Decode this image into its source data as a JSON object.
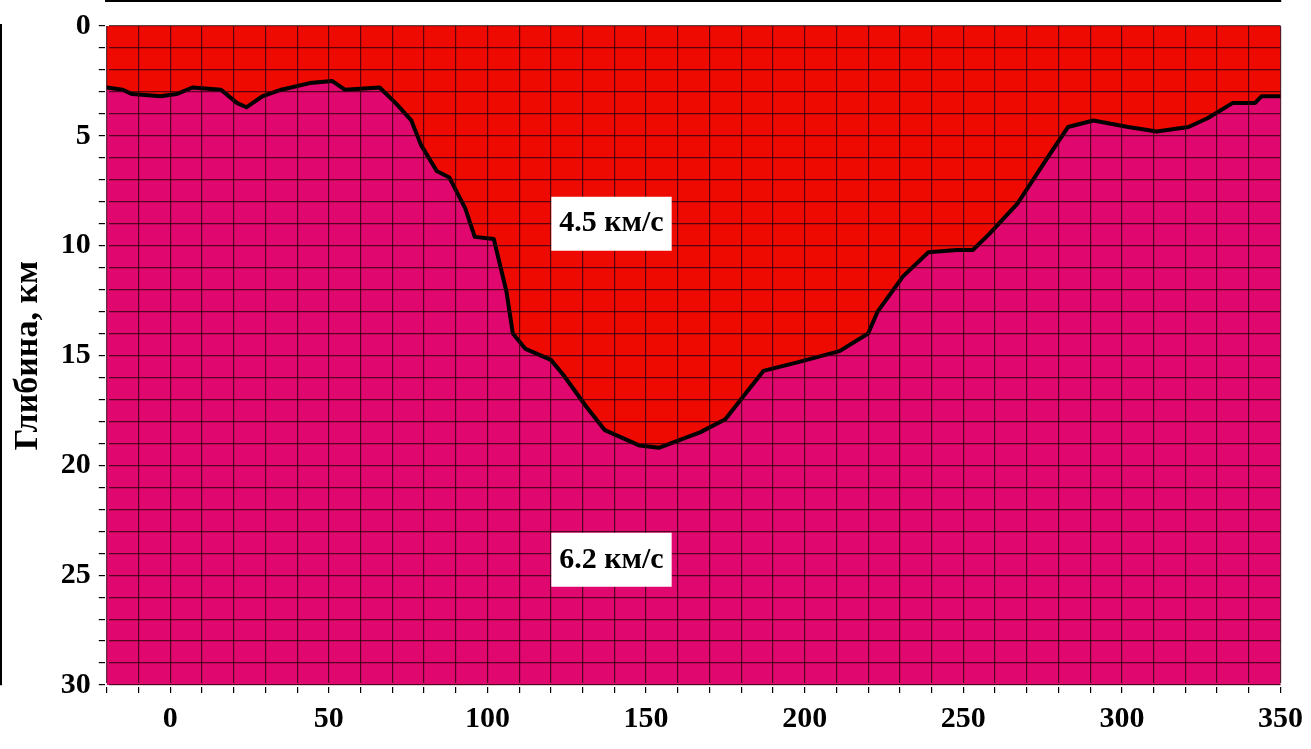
{
  "chart_data": {
    "type": "area",
    "ylabel": "Глибина, км",
    "x": [
      -20,
      -15,
      -12,
      -3,
      2,
      7,
      16,
      21,
      24,
      29,
      35,
      44,
      51,
      55,
      66,
      71,
      76,
      79,
      84,
      88,
      93,
      96,
      102,
      106,
      108,
      112,
      120,
      124,
      131,
      137,
      148,
      154,
      167,
      175,
      181,
      187,
      198,
      211,
      220,
      223,
      231,
      239,
      248,
      253,
      258,
      267,
      277,
      283,
      291,
      302,
      311,
      321,
      327,
      335,
      342,
      344,
      350
    ],
    "series": [
      {
        "color": "#ee0a00",
        "values": [
          2.8,
          2.9,
          3.1,
          3.2,
          3.1,
          2.8,
          2.9,
          3.5,
          3.7,
          3.2,
          2.9,
          2.6,
          2.5,
          2.9,
          2.8,
          3.5,
          4.3,
          5.4,
          6.6,
          6.9,
          8.3,
          9.6,
          9.7,
          12.1,
          14,
          14.7,
          15.2,
          15.9,
          17.3,
          18.4,
          19.1,
          19.2,
          18.5,
          17.9,
          16.8,
          15.7,
          15.3,
          14.8,
          14,
          13,
          11.4,
          10.3,
          10.2,
          10.2,
          9.5,
          8.1,
          5.9,
          4.6,
          4.3,
          4.6,
          4.8,
          4.6,
          4.2,
          3.5,
          3.5,
          3.2,
          3.2
        ]
      }
    ],
    "xlim": [
      -20,
      350
    ],
    "xticks": [
      {
        "value": -20,
        "label": null
      },
      {
        "value": -10,
        "label": null
      },
      0,
      {
        "value": 10,
        "label": null
      },
      {
        "value": 20,
        "label": null
      },
      {
        "value": 30,
        "label": null
      },
      {
        "value": 40,
        "label": null
      },
      50,
      {
        "value": 60,
        "label": null
      },
      {
        "value": 70,
        "label": null
      },
      {
        "value": 80,
        "label": null
      },
      {
        "value": 90,
        "label": null
      },
      100,
      {
        "value": 110,
        "label": null
      },
      {
        "value": 120,
        "label": null
      },
      {
        "value": 130,
        "label": null
      },
      {
        "value": 140,
        "label": null
      },
      150,
      {
        "value": 160,
        "label": null
      },
      {
        "value": 170,
        "label": null
      },
      {
        "value": 180,
        "label": null
      },
      {
        "value": 190,
        "label": null
      },
      200,
      {
        "value": 210,
        "label": null
      },
      {
        "value": 220,
        "label": null
      },
      {
        "value": 230,
        "label": null
      },
      {
        "value": 240,
        "label": null
      },
      250,
      {
        "value": 260,
        "label": null
      },
      {
        "value": 270,
        "label": null
      },
      {
        "value": 280,
        "label": null
      },
      {
        "value": 290,
        "label": null
      },
      300,
      {
        "value": 310,
        "label": null
      },
      {
        "value": 320,
        "label": null
      },
      {
        "value": 330,
        "label": null
      },
      {
        "value": 340,
        "label": null
      },
      350
    ],
    "ylim": [
      30,
      0
    ],
    "yticks": [
      0,
      {
        "value": 1,
        "label": null
      },
      {
        "value": 2,
        "label": null
      },
      {
        "value": 3,
        "label": null
      },
      {
        "value": 4,
        "label": null
      },
      5,
      {
        "value": 6,
        "label": null
      },
      {
        "value": 7,
        "label": null
      },
      {
        "value": 8,
        "label": null
      },
      {
        "value": 9,
        "label": null
      },
      10,
      {
        "value": 11,
        "label": null
      },
      {
        "value": 12,
        "label": null
      },
      {
        "value": 13,
        "label": null
      },
      {
        "value": 14,
        "label": null
      },
      15,
      {
        "value": 16,
        "label": null
      },
      {
        "value": 17,
        "label": null
      },
      {
        "value": 18,
        "label": null
      },
      {
        "value": 19,
        "label": null
      },
      20,
      {
        "value": 21,
        "label": null
      },
      {
        "value": 22,
        "label": null
      },
      {
        "value": 23,
        "label": null
      },
      {
        "value": 24,
        "label": null
      },
      25,
      {
        "value": 26,
        "label": null
      },
      {
        "value": 27,
        "label": null
      },
      {
        "value": 28,
        "label": null
      },
      {
        "value": 29,
        "label": null
      },
      30
    ],
    "grid": true,
    "legend": false,
    "marker": "none",
    "annotations": [
      "4.5 км/с",
      "6.2 км/с"
    ]
  }
}
